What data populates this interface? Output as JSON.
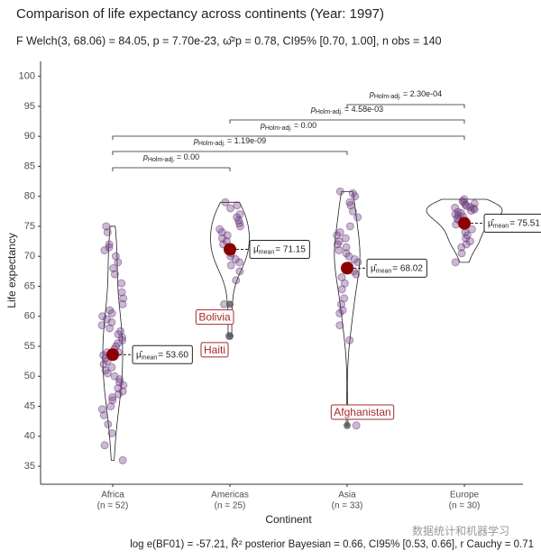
{
  "chart_data": {
    "type": "violin",
    "title": "Comparison of life expectancy across continents (Year: 1997)",
    "subtitle": "F Welch(3, 68.06) = 84.05, p = 7.70e-23, ω̂²p = 0.78, CI95% [0.70, 1.00], n obs = 140",
    "caption": "log e(BF01) = -57.21, R̂² posterior Bayesian = 0.66, CI95% [0.53, 0.66], r Cauchy = 0.71",
    "watermark": "数据统计和机器学习",
    "x_label": "Continent",
    "y_label": "Life expectancy",
    "categories": [
      "Africa",
      "Americas",
      "Asia",
      "Europe"
    ],
    "n_labels": [
      "(n = 52)",
      "(n = 25)",
      "(n = 33)",
      "(n = 30)"
    ],
    "ylim": [
      32,
      102.5
    ],
    "yticks": [
      35,
      40,
      45,
      50,
      55,
      60,
      65,
      70,
      75,
      80,
      85,
      90,
      95,
      100
    ],
    "point_color": "#6b3a7d",
    "mean_color": "#8b0000",
    "points": [
      [
        36,
        38.5,
        40.5,
        42,
        43.5,
        44.5,
        45,
        46,
        46.5,
        47,
        47.5,
        48,
        48.5,
        49,
        49.5,
        50,
        50.5,
        51,
        51.5,
        52,
        52.5,
        53,
        53.5,
        54,
        54.5,
        55,
        55.5,
        56,
        56.5,
        57,
        57.5,
        58,
        58.5,
        59,
        59.5,
        60,
        60.5,
        61,
        62,
        63,
        64,
        65.5,
        67,
        68,
        69,
        70,
        71,
        71.5,
        72,
        74,
        75,
        54
      ],
      [
        56.7,
        62,
        66,
        67.5,
        68.5,
        69,
        69.5,
        70,
        70.5,
        71,
        71.5,
        72,
        72.5,
        73,
        73.5,
        74,
        74.5,
        75,
        75.5,
        76,
        76.5,
        77,
        78,
        78.5,
        79
      ],
      [
        41.8,
        56,
        58.5,
        60.5,
        61,
        62,
        63,
        64.5,
        65.5,
        66.5,
        67,
        67.5,
        68,
        68.5,
        69,
        69.5,
        70,
        70.5,
        71,
        71.5,
        72,
        72.5,
        73,
        73.5,
        74,
        75,
        76.5,
        77.5,
        78.5,
        79,
        80,
        80.5,
        80.8
      ],
      [
        69,
        70.5,
        71.5,
        72,
        72.5,
        73,
        73.5,
        74,
        74.5,
        75,
        75.3,
        75.6,
        76,
        76.3,
        76.6,
        77,
        77.2,
        77.4,
        77.6,
        77.8,
        78,
        78.2,
        78.4,
        78.6,
        78.8,
        79,
        79.2,
        78.1,
        76.8,
        79.5
      ]
    ],
    "means": [
      53.6,
      71.15,
      68.02,
      75.51
    ],
    "mean_prefix": "μ̂",
    "mean_subscript": "mean",
    "mean_value_labels": [
      "= 53.60",
      "= 71.15",
      "= 68.02",
      "= 75.51"
    ],
    "annotations": [
      {
        "label": "Bolivia",
        "category": "Americas",
        "value": 62
      },
      {
        "label": "Haiti",
        "category": "Americas",
        "value": 56.7
      },
      {
        "label": "Afghanistan",
        "category": "Asia",
        "value": 41.8
      }
    ],
    "p_prefix": "p",
    "p_subscript": "Holm-adj.",
    "comparisons": [
      {
        "from": "Africa",
        "to": "Americas",
        "value": 0,
        "value_label": "= 0.00"
      },
      {
        "from": "Africa",
        "to": "Asia",
        "value": 1.19e-09,
        "value_label": "= 1.19e-09"
      },
      {
        "from": "Africa",
        "to": "Europe",
        "value": 0,
        "value_label": "= 0.00"
      },
      {
        "from": "Americas",
        "to": "Europe",
        "value": 0.00458,
        "value_label": "= 4.58e-03"
      },
      {
        "from": "Asia",
        "to": "Europe",
        "value": 0.00023,
        "value_label": "= 2.30e-04"
      }
    ]
  }
}
